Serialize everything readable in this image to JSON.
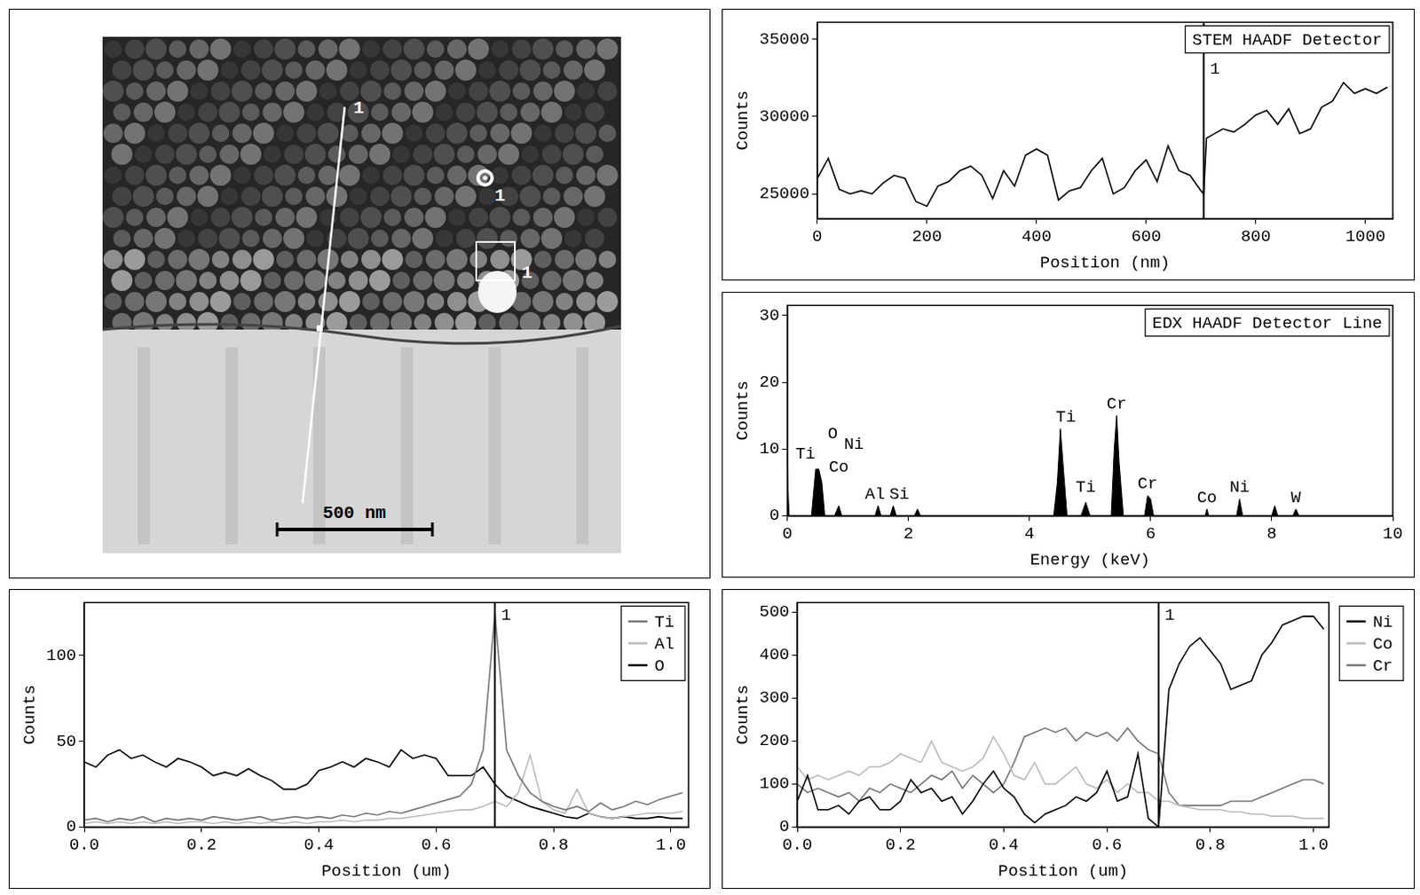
{
  "micrograph": {
    "scale_bar": "500 nm",
    "annotations": [
      "1",
      "1",
      "1"
    ]
  },
  "chart_data": [
    {
      "type": "line",
      "title": "STEM HAADF Detector",
      "x_label": "Position (nm)",
      "y_label": "Counts",
      "x": [
        0,
        20,
        40,
        60,
        80,
        100,
        120,
        140,
        160,
        180,
        200,
        220,
        240,
        260,
        280,
        300,
        320,
        340,
        360,
        380,
        400,
        420,
        440,
        460,
        480,
        500,
        520,
        540,
        560,
        580,
        600,
        620,
        640,
        660,
        680,
        700,
        705,
        710,
        720,
        740,
        760,
        780,
        800,
        820,
        840,
        860,
        880,
        900,
        920,
        940,
        960,
        980,
        1000,
        1020,
        1040
      ],
      "values": [
        26000,
        27300,
        25300,
        25000,
        25200,
        25000,
        25700,
        26200,
        26000,
        24500,
        24200,
        25500,
        25800,
        26500,
        26800,
        26200,
        24700,
        26500,
        25500,
        27500,
        27900,
        27500,
        24600,
        25200,
        25400,
        26500,
        27300,
        25000,
        25400,
        26500,
        27200,
        25800,
        28100,
        26500,
        26200,
        25200,
        25000,
        28600,
        28800,
        29200,
        29000,
        29500,
        30100,
        30400,
        29500,
        30500,
        28900,
        29200,
        30600,
        31000,
        32200,
        31500,
        31800,
        31500,
        31900
      ],
      "color": "#000000",
      "xlim": [
        0,
        1050
      ],
      "xticks": [
        0,
        200,
        400,
        600,
        800,
        1000
      ],
      "ylim": [
        23400,
        36100
      ],
      "yticks": [
        25000,
        30000,
        35000
      ],
      "grid": false,
      "markers": [
        {
          "x": 705,
          "label": "1"
        }
      ]
    },
    {
      "type": "area",
      "title": "EDX HAADF Detector Line",
      "x_label": "Energy (keV)",
      "y_label": "Counts",
      "x": [
        0,
        0.03,
        0.4,
        0.47,
        0.52,
        0.57,
        0.62,
        0.78,
        0.85,
        0.9,
        1.45,
        1.5,
        1.55,
        1.7,
        1.75,
        1.8,
        2.1,
        2.15,
        2.2,
        4.4,
        4.46,
        4.51,
        4.56,
        4.62,
        4.85,
        4.93,
        5.0,
        5.35,
        5.4,
        5.44,
        5.48,
        5.55,
        5.9,
        5.95,
        6.0,
        6.05,
        6.9,
        6.93,
        6.96,
        7.42,
        7.47,
        7.52,
        8.0,
        8.05,
        8.1,
        8.35,
        8.4,
        8.45,
        10
      ],
      "values": [
        7,
        0,
        0,
        7,
        7,
        5,
        0,
        0,
        1.5,
        0,
        0,
        1.5,
        0,
        0,
        1.5,
        0,
        0,
        1,
        0,
        0,
        5,
        13,
        7,
        0,
        0,
        2,
        0,
        0,
        10,
        15,
        8,
        0,
        0,
        3,
        2.5,
        0,
        0,
        1,
        0,
        0,
        2.5,
        0,
        0,
        1.5,
        0,
        0,
        1,
        0,
        0
      ],
      "color": "#000000",
      "xlim": [
        0,
        10
      ],
      "xticks": [
        0,
        2,
        4,
        6,
        8,
        10
      ],
      "ylim": [
        0,
        31.5
      ],
      "yticks": [
        0,
        10,
        20,
        30
      ],
      "grid": false,
      "annotations": [
        {
          "text": "Ti",
          "x": 0.3,
          "y": 8
        },
        {
          "text": "O",
          "x": 0.75,
          "y": 11
        },
        {
          "text": "Ni",
          "x": 1.1,
          "y": 9.5
        },
        {
          "text": "Co",
          "x": 0.85,
          "y": 6
        },
        {
          "text": "Al",
          "x": 1.45,
          "y": 2
        },
        {
          "text": "Si",
          "x": 1.85,
          "y": 2
        },
        {
          "text": "Ti",
          "x": 4.6,
          "y": 13.5
        },
        {
          "text": "Ti",
          "x": 4.93,
          "y": 3
        },
        {
          "text": "Cr",
          "x": 5.44,
          "y": 15.5
        },
        {
          "text": "Cr",
          "x": 5.95,
          "y": 3.5
        },
        {
          "text": "Co",
          "x": 6.93,
          "y": 1.5
        },
        {
          "text": "Ni",
          "x": 7.47,
          "y": 3
        },
        {
          "text": "W",
          "x": 8.4,
          "y": 1.5
        }
      ]
    },
    {
      "type": "line",
      "x_label": "Position (um)",
      "y_label": "Counts",
      "x": [
        0,
        0.02,
        0.04,
        0.06,
        0.08,
        0.1,
        0.12,
        0.14,
        0.16,
        0.18,
        0.2,
        0.22,
        0.24,
        0.26,
        0.28,
        0.3,
        0.32,
        0.34,
        0.36,
        0.38,
        0.4,
        0.42,
        0.44,
        0.46,
        0.48,
        0.5,
        0.52,
        0.54,
        0.56,
        0.58,
        0.6,
        0.62,
        0.64,
        0.66,
        0.68,
        0.7,
        0.72,
        0.74,
        0.76,
        0.78,
        0.8,
        0.82,
        0.84,
        0.86,
        0.88,
        0.9,
        0.92,
        0.94,
        0.96,
        0.98,
        1.0,
        1.02
      ],
      "series": [
        {
          "name": "Ti",
          "color": "#777777",
          "values": [
            4,
            5,
            3,
            5,
            4,
            6,
            3,
            5,
            4,
            5,
            4,
            6,
            5,
            4,
            5,
            6,
            4,
            5,
            6,
            5,
            6,
            5,
            7,
            6,
            8,
            7,
            9,
            8,
            10,
            12,
            14,
            16,
            18,
            25,
            45,
            125,
            45,
            30,
            20,
            15,
            12,
            10,
            12,
            9,
            14,
            10,
            12,
            15,
            13,
            16,
            18,
            20
          ]
        },
        {
          "name": "Al",
          "color": "#bbbbbb",
          "values": [
            2,
            3,
            2,
            3,
            2,
            3,
            2,
            3,
            2,
            3,
            3,
            2,
            3,
            2,
            3,
            2,
            3,
            2,
            3,
            2,
            3,
            3,
            4,
            3,
            4,
            4,
            5,
            5,
            6,
            7,
            8,
            9,
            10,
            10,
            12,
            15,
            12,
            20,
            42,
            15,
            10,
            8,
            22,
            8,
            6,
            5,
            6,
            7,
            8,
            8,
            8,
            9
          ]
        },
        {
          "name": "O",
          "color": "#000000",
          "values": [
            38,
            35,
            42,
            45,
            40,
            42,
            38,
            35,
            40,
            38,
            35,
            30,
            32,
            30,
            34,
            30,
            27,
            22,
            22,
            25,
            33,
            35,
            38,
            35,
            40,
            38,
            35,
            45,
            40,
            42,
            40,
            30,
            30,
            30,
            35,
            25,
            18,
            15,
            12,
            10,
            8,
            6,
            5,
            8,
            6,
            5,
            6,
            5,
            5,
            6,
            5,
            5
          ]
        }
      ],
      "xlim": [
        0,
        1.03
      ],
      "xticks": [
        {
          "value": 0,
          "label": "0.0"
        },
        {
          "value": 0.2,
          "label": "0.2"
        },
        {
          "value": 0.4,
          "label": "0.4"
        },
        {
          "value": 0.6,
          "label": "0.6"
        },
        {
          "value": 0.8,
          "label": "0.8"
        },
        {
          "value": 1,
          "label": "1.0"
        }
      ],
      "ylim": [
        0,
        131
      ],
      "yticks": [
        0,
        50,
        100
      ],
      "grid": false,
      "legend": "top right",
      "markers": [
        {
          "x": 0.7,
          "label": "1"
        }
      ]
    },
    {
      "type": "line",
      "x_label": "Position (um)",
      "y_label": "Counts",
      "x": [
        0,
        0.02,
        0.04,
        0.06,
        0.08,
        0.1,
        0.12,
        0.14,
        0.16,
        0.18,
        0.2,
        0.22,
        0.24,
        0.26,
        0.28,
        0.3,
        0.32,
        0.34,
        0.36,
        0.38,
        0.4,
        0.42,
        0.44,
        0.46,
        0.48,
        0.5,
        0.52,
        0.54,
        0.56,
        0.58,
        0.6,
        0.62,
        0.64,
        0.66,
        0.68,
        0.7,
        0.72,
        0.74,
        0.76,
        0.78,
        0.8,
        0.82,
        0.84,
        0.86,
        0.88,
        0.9,
        0.92,
        0.94,
        0.96,
        0.98,
        1.0,
        1.02
      ],
      "series": [
        {
          "name": "Ni",
          "color": "#000000",
          "values": [
            60,
            120,
            40,
            40,
            50,
            30,
            60,
            70,
            40,
            40,
            60,
            110,
            80,
            90,
            60,
            70,
            30,
            60,
            100,
            130,
            90,
            70,
            30,
            10,
            30,
            40,
            50,
            70,
            60,
            80,
            130,
            60,
            70,
            170,
            20,
            0,
            320,
            380,
            420,
            440,
            410,
            380,
            320,
            330,
            340,
            400,
            430,
            470,
            480,
            490,
            490,
            460
          ]
        },
        {
          "name": "Co",
          "color": "#bbbbbb",
          "values": [
            140,
            110,
            120,
            110,
            120,
            130,
            120,
            140,
            140,
            150,
            170,
            160,
            150,
            200,
            150,
            140,
            130,
            140,
            160,
            210,
            170,
            120,
            110,
            150,
            100,
            100,
            120,
            140,
            100,
            90,
            110,
            80,
            100,
            80,
            80,
            60,
            60,
            50,
            45,
            40,
            40,
            40,
            35,
            35,
            30,
            30,
            25,
            25,
            25,
            20,
            20,
            20
          ]
        },
        {
          "name": "Cr",
          "color": "#777777",
          "values": [
            100,
            80,
            90,
            80,
            70,
            80,
            60,
            90,
            80,
            100,
            90,
            80,
            100,
            120,
            110,
            130,
            90,
            120,
            100,
            80,
            100,
            150,
            210,
            220,
            230,
            220,
            230,
            200,
            220,
            210,
            220,
            200,
            230,
            200,
            180,
            170,
            80,
            50,
            50,
            50,
            50,
            50,
            60,
            60,
            60,
            70,
            80,
            90,
            100,
            110,
            110,
            100
          ]
        }
      ],
      "xlim": [
        0,
        1.03
      ],
      "xticks": [
        {
          "value": 0,
          "label": "0.0"
        },
        {
          "value": 0.2,
          "label": "0.2"
        },
        {
          "value": 0.4,
          "label": "0.4"
        },
        {
          "value": 0.6,
          "label": "0.6"
        },
        {
          "value": 0.8,
          "label": "0.8"
        },
        {
          "value": 1,
          "label": "1.0"
        }
      ],
      "ylim": [
        0,
        522
      ],
      "yticks": [
        0,
        100,
        200,
        300,
        400,
        500
      ],
      "grid": false,
      "legend": "right",
      "markers": [
        {
          "x": 0.7,
          "label": "1"
        }
      ]
    }
  ]
}
